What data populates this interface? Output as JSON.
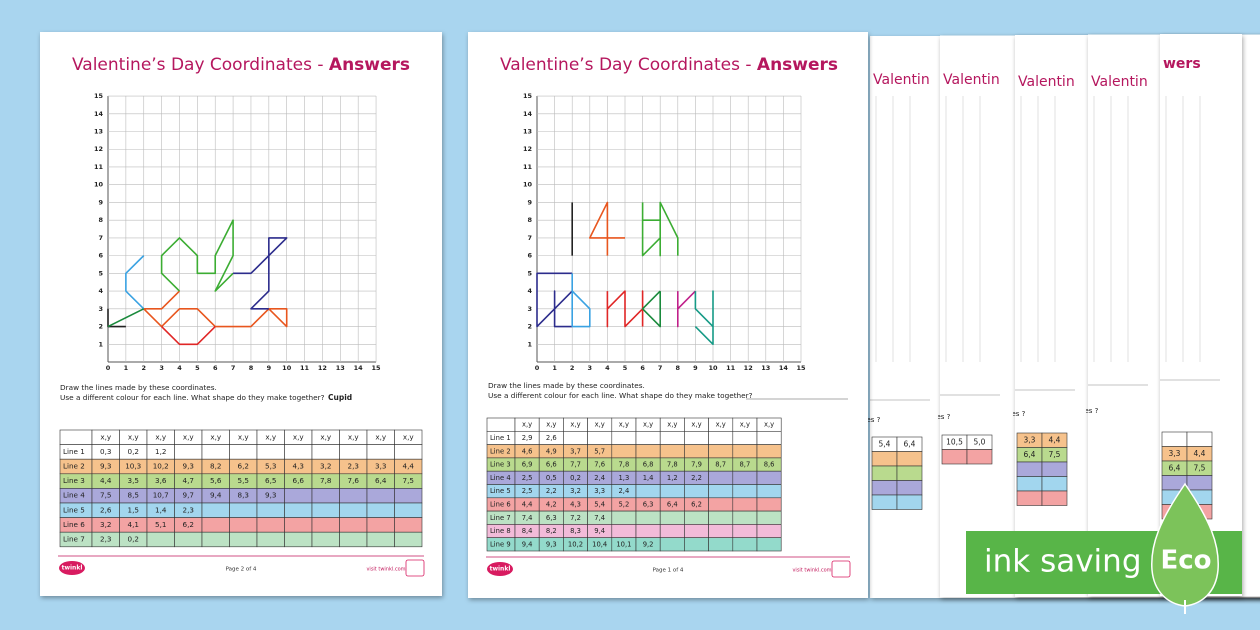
{
  "pages": [
    {
      "title": "Valentine’s Day Coordinates - ",
      "title_bold": "Answers",
      "axis": [
        0,
        1,
        2,
        3,
        4,
        5,
        6,
        7,
        8,
        9,
        10,
        11,
        12,
        13,
        14,
        15
      ],
      "instructions": [
        "Draw the lines made by these coordinates.",
        "Use a different colour for each line. What shape do they make together?"
      ],
      "answer": "Cupid",
      "header": "x,y",
      "rows": [
        {
          "label": "Line 1",
          "fill": "#ffffff",
          "stroke": "#222222",
          "cells": [
            "0,3",
            "0,2",
            "1,2"
          ]
        },
        {
          "label": "Line 2",
          "fill": "#f6c28c",
          "stroke": "#e8561e",
          "cells": [
            "9,3",
            "10,3",
            "10,2",
            "9,3",
            "8,2",
            "6,2",
            "5,3",
            "4,3",
            "3,2",
            "2,3",
            "3,3",
            "4,4"
          ]
        },
        {
          "label": "Line 3",
          "fill": "#b9da8e",
          "stroke": "#3cad33",
          "cells": [
            "4,4",
            "3,5",
            "3,6",
            "4,7",
            "5,6",
            "5,5",
            "6,5",
            "6,6",
            "7,8",
            "7,6",
            "6,4",
            "7,5"
          ]
        },
        {
          "label": "Line 4",
          "fill": "#aaa8da",
          "stroke": "#2c2c8c",
          "cells": [
            "7,5",
            "8,5",
            "10,7",
            "9,7",
            "9,4",
            "8,3",
            "9,3"
          ]
        },
        {
          "label": "Line 5",
          "fill": "#a2d6ee",
          "stroke": "#3aa2e2",
          "cells": [
            "2,6",
            "1,5",
            "1,4",
            "2,3"
          ]
        },
        {
          "label": "Line 6",
          "fill": "#f3a3a3",
          "stroke": "#e02626",
          "cells": [
            "3,2",
            "4,1",
            "5,1",
            "6,2"
          ]
        },
        {
          "label": "Line 7",
          "fill": "#bce2c4",
          "stroke": "#1a8a3c",
          "cells": [
            "2,3",
            "0,2"
          ]
        }
      ],
      "footer": {
        "logo": "twinkl",
        "page": "Page 2 of 4",
        "site": "visit twinkl.com"
      }
    },
    {
      "title": "Valentine’s Day Coordinates - ",
      "title_bold": "Answers",
      "axis": [
        0,
        1,
        2,
        3,
        4,
        5,
        6,
        7,
        8,
        9,
        10,
        11,
        12,
        13,
        14,
        15
      ],
      "instructions": [
        "Draw the lines made by these coordinates.",
        "Use a different colour for each line. What shape do they make together?"
      ],
      "header": "x,y",
      "rows": [
        {
          "label": "Line 1",
          "fill": "#ffffff",
          "stroke": "#222222",
          "cells": [
            "2,9",
            "2,6"
          ]
        },
        {
          "label": "Line 2",
          "fill": "#f6c28c",
          "stroke": "#e8561e",
          "cells": [
            "4,6",
            "4,9",
            "3,7",
            "5,7"
          ]
        },
        {
          "label": "Line 3",
          "fill": "#b9da8e",
          "stroke": "#3cad33",
          "cells": [
            "6,9",
            "6,6",
            "7,7",
            "7,6",
            "7,8",
            "6,8",
            "7,8",
            "7,9",
            "8,7",
            "8,7",
            "8,6"
          ]
        },
        {
          "label": "Line 4",
          "fill": "#aaa8da",
          "stroke": "#2c2c8c",
          "cells": [
            "2,5",
            "0,5",
            "0,2",
            "2,4",
            "1,3",
            "1,4",
            "1,2",
            "2,2"
          ]
        },
        {
          "label": "Line 5",
          "fill": "#a2d6ee",
          "stroke": "#3aa2e2",
          "cells": [
            "2,5",
            "2,2",
            "3,2",
            "3,3",
            "2,4"
          ]
        },
        {
          "label": "Line 6",
          "fill": "#f3a3a3",
          "stroke": "#e02626",
          "cells": [
            "4,4",
            "4,2",
            "4,3",
            "5,4",
            "5,2",
            "6,3",
            "6,4",
            "6,2"
          ]
        },
        {
          "label": "Line 7",
          "fill": "#bce2c4",
          "stroke": "#1a8a3c",
          "cells": [
            "7,4",
            "6,3",
            "7,2",
            "7,4"
          ]
        },
        {
          "label": "Line 8",
          "fill": "#f2bbd9",
          "stroke": "#c0208a",
          "cells": [
            "8,4",
            "8,2",
            "8,3",
            "9,4"
          ]
        },
        {
          "label": "Line 9",
          "fill": "#93dacb",
          "stroke": "#169a86",
          "cells": [
            "9,4",
            "9,3",
            "10,2",
            "10,4",
            "10,1",
            "9,2"
          ]
        }
      ],
      "footer": {
        "logo": "twinkl",
        "page": "Page 1 of 4",
        "site": "visit twinkl.com"
      }
    }
  ],
  "back_pages": [
    {
      "title": "Valentin",
      "question": "des ?",
      "rows": [
        {
          "fill": "#ffffff",
          "cells": [
            "5,4",
            "6,4"
          ]
        },
        {
          "fill": "#f6c28c",
          "cells": []
        },
        {
          "fill": "#b9da8e",
          "cells": []
        },
        {
          "fill": "#aaa8da",
          "cells": []
        },
        {
          "fill": "#a2d6ee",
          "cells": []
        }
      ]
    },
    {
      "title": "Valentin",
      "question": "des ?",
      "rows": [
        {
          "fill": "#ffffff",
          "cells": [
            "10,5",
            "5,0"
          ]
        },
        {
          "fill": "#f3a3a3",
          "cells": []
        }
      ]
    },
    {
      "title": "Valentin",
      "question": "des ?",
      "rows": [
        {
          "fill": "#f6c28c",
          "cells": [
            "3,3",
            "4,4"
          ]
        },
        {
          "fill": "#b9da8e",
          "cells": [
            "6,4",
            "7,5"
          ]
        },
        {
          "fill": "#aaa8da",
          "cells": []
        },
        {
          "fill": "#a2d6ee",
          "cells": []
        },
        {
          "fill": "#f3a3a3",
          "cells": []
        }
      ]
    },
    {
      "title": "Valentin",
      "question": "des ?",
      "rows": []
    },
    {
      "title": "wers",
      "question": "",
      "rows": [
        {
          "fill": "#ffffff",
          "cells": []
        },
        {
          "fill": "#f6c28c",
          "cells": [
            "3,3",
            "4,4"
          ]
        },
        {
          "fill": "#b9da8e",
          "cells": [
            "6,4",
            "7,5"
          ]
        },
        {
          "fill": "#aaa8da",
          "cells": []
        },
        {
          "fill": "#a2d6ee",
          "cells": []
        },
        {
          "fill": "#f3a3a3",
          "cells": []
        }
      ]
    }
  ],
  "badge": {
    "text": "ink saving",
    "eco": "Eco"
  }
}
